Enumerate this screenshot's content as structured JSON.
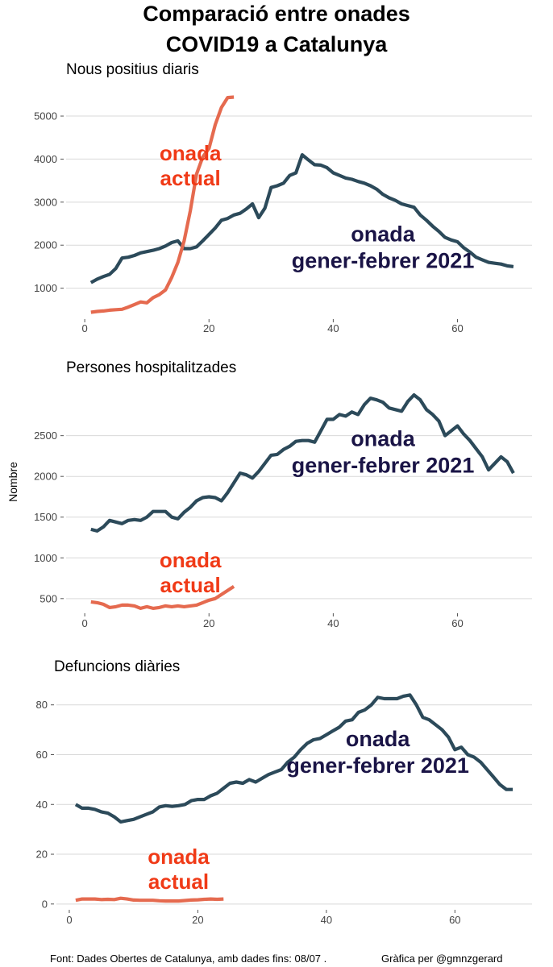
{
  "title_line1": "Comparació entre onades",
  "title_line2": "COVID19 a Catalunya",
  "y_axis_label": "Nombre",
  "footer_source": "Font: Dades Obertes de Catalunya, amb dades fins: 08/07 .",
  "footer_credit": "Gràfica per @gmnzgerard",
  "colors": {
    "current_wave": "#e56a4f",
    "winter_wave": "#2c4a5a",
    "current_label": "#f03a17",
    "winter_label": "#1a1446",
    "grid": "#d9d9d9"
  },
  "chart_data": [
    {
      "type": "line",
      "title": "Nous positius diaris",
      "xlabel": "",
      "ylabel": "Nombre",
      "xlim": [
        -3,
        72
      ],
      "ylim": [
        300,
        5600
      ],
      "x_ticks": [
        0,
        20,
        40,
        60
      ],
      "y_ticks": [
        1000,
        2000,
        3000,
        4000,
        5000
      ],
      "grid": true,
      "annotations": [
        {
          "lines": [
            "onada",
            "actual"
          ],
          "series": "onada actual",
          "at_x": 17,
          "at_y": 3850
        },
        {
          "lines": [
            "onada",
            "gener-febrer 2021"
          ],
          "series": "onada gener-febrer 2021",
          "at_x": 48,
          "at_y": 1950
        }
      ],
      "series": [
        {
          "name": "onada actual",
          "color": "#e56a4f",
          "x": [
            1,
            2,
            3,
            4,
            5,
            6,
            7,
            8,
            9,
            10,
            11,
            12,
            13,
            14,
            15,
            16,
            17,
            18,
            19,
            20,
            21,
            22,
            23,
            24
          ],
          "values": [
            440,
            460,
            470,
            490,
            500,
            510,
            560,
            620,
            680,
            660,
            780,
            850,
            960,
            1250,
            1600,
            2100,
            2800,
            3650,
            4050,
            4250,
            4800,
            5200,
            5430,
            5440
          ]
        },
        {
          "name": "onada gener-febrer 2021",
          "color": "#2c4a5a",
          "x": [
            1,
            2,
            3,
            4,
            5,
            6,
            7,
            8,
            9,
            10,
            11,
            12,
            13,
            14,
            15,
            16,
            17,
            18,
            19,
            20,
            21,
            22,
            23,
            24,
            25,
            26,
            27,
            28,
            29,
            30,
            31,
            32,
            33,
            34,
            35,
            36,
            37,
            38,
            39,
            40,
            41,
            42,
            43,
            44,
            45,
            46,
            47,
            48,
            49,
            50,
            51,
            52,
            53,
            54,
            55,
            56,
            57,
            58,
            59,
            60,
            61,
            62,
            63,
            64,
            65,
            66,
            67,
            68,
            69
          ],
          "values": [
            1130,
            1210,
            1270,
            1320,
            1460,
            1700,
            1720,
            1760,
            1820,
            1850,
            1880,
            1920,
            1980,
            2060,
            2100,
            1920,
            1920,
            1960,
            2100,
            2250,
            2400,
            2580,
            2620,
            2700,
            2740,
            2840,
            2960,
            2640,
            2860,
            3340,
            3380,
            3440,
            3620,
            3680,
            4100,
            3980,
            3870,
            3860,
            3800,
            3680,
            3620,
            3560,
            3530,
            3480,
            3440,
            3380,
            3300,
            3180,
            3100,
            3040,
            2960,
            2920,
            2880,
            2700,
            2580,
            2440,
            2320,
            2180,
            2120,
            2080,
            1940,
            1840,
            1720,
            1660,
            1600,
            1580,
            1560,
            1520,
            1500
          ]
        }
      ]
    },
    {
      "type": "line",
      "title": "Persones hospitalitzades",
      "xlabel": "",
      "ylabel": "Nombre",
      "xlim": [
        -3,
        72
      ],
      "ylim": [
        330,
        3100
      ],
      "x_ticks": [
        0,
        20,
        40,
        60
      ],
      "y_ticks": [
        500,
        1000,
        1500,
        2000,
        2500
      ],
      "grid": true,
      "annotations": [
        {
          "lines": [
            "onada",
            "actual"
          ],
          "series": "onada actual",
          "at_x": 17,
          "at_y": 820
        },
        {
          "lines": [
            "onada",
            "gener-febrer 2021"
          ],
          "series": "onada gener-febrer 2021",
          "at_x": 48,
          "at_y": 2300
        }
      ],
      "series": [
        {
          "name": "onada actual",
          "color": "#e56a4f",
          "x": [
            1,
            2,
            3,
            4,
            5,
            6,
            7,
            8,
            9,
            10,
            11,
            12,
            13,
            14,
            15,
            16,
            17,
            18,
            19,
            20,
            21,
            22,
            23,
            24
          ],
          "values": [
            460,
            450,
            430,
            390,
            400,
            420,
            420,
            410,
            380,
            400,
            380,
            390,
            410,
            400,
            410,
            400,
            410,
            420,
            450,
            480,
            500,
            550,
            600,
            650
          ]
        },
        {
          "name": "onada gener-febrer 2021",
          "color": "#2c4a5a",
          "x": [
            1,
            2,
            3,
            4,
            5,
            6,
            7,
            8,
            9,
            10,
            11,
            12,
            13,
            14,
            15,
            16,
            17,
            18,
            19,
            20,
            21,
            22,
            23,
            24,
            25,
            26,
            27,
            28,
            29,
            30,
            31,
            32,
            33,
            34,
            35,
            36,
            37,
            38,
            39,
            40,
            41,
            42,
            43,
            44,
            45,
            46,
            47,
            48,
            49,
            50,
            51,
            52,
            53,
            54,
            55,
            56,
            57,
            58,
            59,
            60,
            61,
            62,
            63,
            64,
            65,
            66,
            67,
            68,
            69
          ],
          "values": [
            1350,
            1330,
            1380,
            1460,
            1440,
            1420,
            1460,
            1470,
            1460,
            1500,
            1570,
            1570,
            1570,
            1500,
            1480,
            1560,
            1620,
            1700,
            1740,
            1750,
            1740,
            1700,
            1800,
            1920,
            2040,
            2020,
            1980,
            2060,
            2160,
            2260,
            2270,
            2330,
            2370,
            2430,
            2440,
            2440,
            2420,
            2560,
            2700,
            2700,
            2760,
            2740,
            2790,
            2760,
            2880,
            2960,
            2940,
            2910,
            2840,
            2820,
            2800,
            2920,
            3000,
            2940,
            2820,
            2760,
            2680,
            2500,
            2560,
            2620,
            2520,
            2440,
            2340,
            2240,
            2080,
            2160,
            2240,
            2180,
            2040
          ]
        }
      ]
    },
    {
      "type": "line",
      "title": "Defuncions diàries",
      "xlabel": "",
      "ylabel": "Nombre",
      "xlim": [
        -2,
        72
      ],
      "ylim": [
        -2,
        88
      ],
      "x_ticks": [
        0,
        20,
        40,
        60
      ],
      "y_ticks": [
        0,
        20,
        40,
        60,
        80
      ],
      "grid": true,
      "annotations": [
        {
          "lines": [
            "onada",
            "actual"
          ],
          "series": "onada actual",
          "at_x": 17,
          "at_y": 14
        },
        {
          "lines": [
            "onada",
            "gener-febrer 2021"
          ],
          "series": "onada gener-febrer 2021",
          "at_x": 48,
          "at_y": 61
        }
      ],
      "series": [
        {
          "name": "onada actual",
          "color": "#e56a4f",
          "x": [
            1,
            2,
            3,
            4,
            5,
            6,
            7,
            8,
            9,
            10,
            11,
            12,
            13,
            14,
            15,
            16,
            17,
            18,
            19,
            20,
            21,
            22,
            23,
            24
          ],
          "values": [
            1.5,
            2,
            2,
            2,
            1.8,
            1.9,
            1.8,
            2.3,
            2,
            1.6,
            1.5,
            1.5,
            1.5,
            1.3,
            1.2,
            1.2,
            1.2,
            1.4,
            1.6,
            1.7,
            1.9,
            2,
            1.9,
            2
          ]
        },
        {
          "name": "onada gener-febrer 2021",
          "color": "#2c4a5a",
          "x": [
            1,
            2,
            3,
            4,
            5,
            6,
            7,
            8,
            9,
            10,
            11,
            12,
            13,
            14,
            15,
            16,
            17,
            18,
            19,
            20,
            21,
            22,
            23,
            24,
            25,
            26,
            27,
            28,
            29,
            30,
            31,
            32,
            33,
            34,
            35,
            36,
            37,
            38,
            39,
            40,
            41,
            42,
            43,
            44,
            45,
            46,
            47,
            48,
            49,
            50,
            51,
            52,
            53,
            54,
            55,
            56,
            57,
            58,
            59,
            60,
            61,
            62,
            63,
            64,
            65,
            66,
            67,
            68,
            69
          ],
          "values": [
            40,
            38.5,
            38.5,
            38,
            37,
            36.5,
            35,
            33,
            33.5,
            34,
            35,
            36,
            37,
            39,
            39.5,
            39.2,
            39.5,
            40,
            41.5,
            42,
            42,
            43.5,
            44.5,
            46.5,
            48.5,
            49,
            48.5,
            50,
            49,
            50.5,
            52,
            53,
            54,
            57,
            59,
            62,
            64.5,
            66,
            66.5,
            68,
            69.5,
            71,
            73.5,
            74,
            77,
            78,
            80,
            83,
            82.5,
            82.5,
            82.5,
            83.5,
            84,
            80,
            75,
            74,
            72,
            70,
            67,
            62,
            63,
            60,
            59,
            57,
            54,
            51,
            48,
            46,
            46
          ]
        }
      ]
    }
  ]
}
